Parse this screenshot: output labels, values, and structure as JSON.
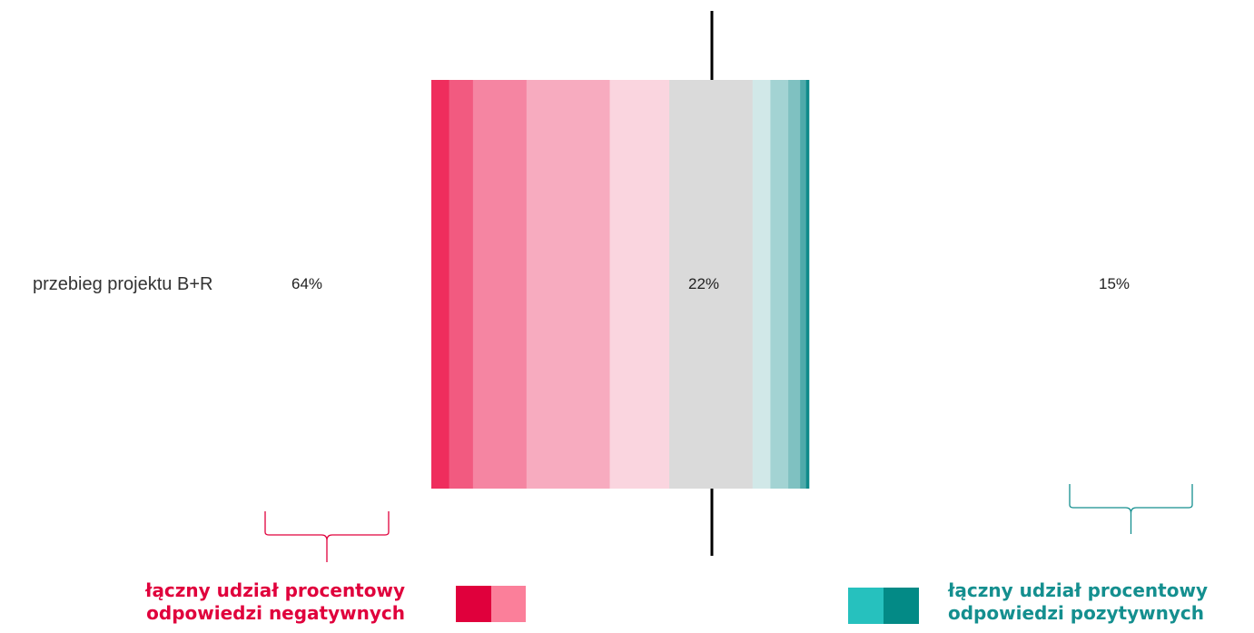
{
  "chart_data": {
    "type": "bar",
    "orientation": "horizontal",
    "stacked": true,
    "diverging": true,
    "categories": [
      "przebieg projektu B+R"
    ],
    "series": [
      {
        "values": [
          3
        ],
        "color": "#ef2d5d"
      },
      {
        "values": [
          4
        ],
        "color": "#f25a80"
      },
      {
        "values": [
          9
        ],
        "color": "#f585a2"
      },
      {
        "values": [
          14
        ],
        "color": "#f7abbf"
      },
      {
        "values": [
          10
        ],
        "color": "#fad5df"
      },
      {
        "values": [
          14
        ],
        "color": "#dadada"
      },
      {
        "values": [
          3
        ],
        "color": "#d1e8e8"
      },
      {
        "values": [
          3
        ],
        "color": "#a3d3d3"
      },
      {
        "values": [
          2
        ],
        "color": "#7fc1c1"
      },
      {
        "values": [
          1
        ],
        "color": "#4eaaaa"
      },
      {
        "values": [
          0.5
        ],
        "color": "#0e8a8a"
      }
    ],
    "summary": {
      "negative": "64%",
      "neutral": "22%",
      "positive": "15%"
    },
    "legend": {
      "negative": {
        "lines": [
          "łączny udział procentowy",
          "odpowiedzi negatywnych"
        ],
        "color": "#e0003c",
        "swatches": [
          "#e0003c",
          "#fb7f9a"
        ]
      },
      "positive": {
        "lines": [
          "łączny udział procentowy",
          "odpowiedzi pozytywnych"
        ],
        "color": "#148f8f",
        "swatches": [
          "#26c1be",
          "#038a86"
        ]
      }
    },
    "center_line": true,
    "grid": false
  }
}
